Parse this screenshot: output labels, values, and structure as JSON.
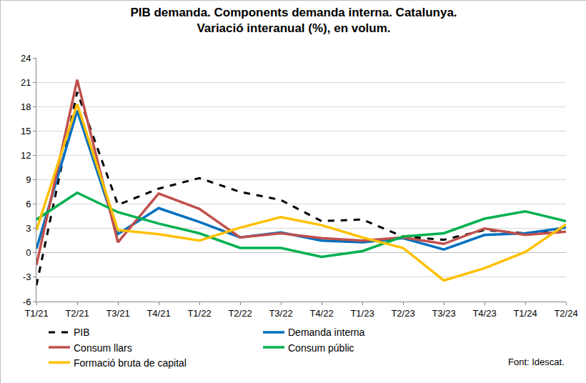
{
  "chart_data": {
    "type": "line",
    "title": "PIB demanda. Components demanda interna. Catalunya.\nVariació interanual (%), en volum.",
    "categories": [
      "T1/21",
      "T2/21",
      "T3/21",
      "T4/21",
      "T1/22",
      "T2/22",
      "T3/22",
      "T4/22",
      "T1/23",
      "T2/23",
      "T3/23",
      "T4/23",
      "T1/24",
      "T2/24"
    ],
    "series": [
      {
        "name": "PIB",
        "color": "#000000",
        "line_style": "dash",
        "values": [
          -4.0,
          19.8,
          5.9,
          7.9,
          9.2,
          7.5,
          6.5,
          3.9,
          4.1,
          2.0,
          1.6,
          2.8,
          2.4,
          2.9
        ]
      },
      {
        "name": "Demanda interna",
        "color": "#0070C0",
        "line_style": "solid",
        "values": [
          0.5,
          17.5,
          2.3,
          5.5,
          3.8,
          1.9,
          2.5,
          1.5,
          1.3,
          1.8,
          0.4,
          2.2,
          2.4,
          3.1
        ]
      },
      {
        "name": "Consum llars",
        "color": "#C0504D",
        "line_style": "solid",
        "values": [
          -1.5,
          21.3,
          1.3,
          7.3,
          5.4,
          1.9,
          2.4,
          1.8,
          1.5,
          1.9,
          1.1,
          3.0,
          2.2,
          2.6
        ]
      },
      {
        "name": "Consum públic",
        "color": "#00B050",
        "line_style": "solid",
        "values": [
          4.1,
          7.4,
          5.0,
          3.6,
          2.4,
          0.6,
          0.6,
          -0.5,
          0.2,
          2.0,
          2.4,
          4.2,
          5.1,
          3.9
        ]
      },
      {
        "name": "Formació bruta de capital",
        "color": "#FFC000",
        "line_style": "solid",
        "values": [
          2.8,
          18.3,
          2.8,
          2.3,
          1.5,
          3.1,
          4.4,
          3.4,
          1.9,
          0.6,
          -3.4,
          -1.9,
          0.1,
          3.5
        ]
      }
    ],
    "ylim": [
      -6,
      24
    ],
    "yticks": [
      -6,
      -3,
      0,
      3,
      6,
      9,
      12,
      15,
      18,
      21,
      24
    ],
    "grid": true,
    "legend": "bottom",
    "annotations": [
      "Font: Idescat."
    ]
  }
}
